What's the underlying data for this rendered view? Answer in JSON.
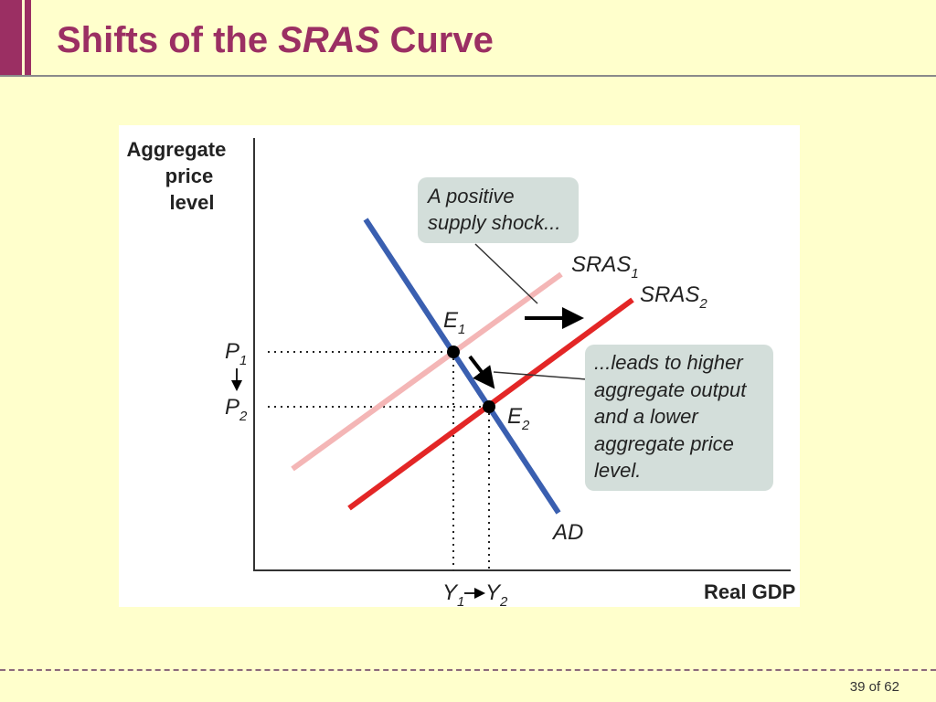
{
  "slide": {
    "title_prefix": "Shifts of the ",
    "title_emphasis": "SRAS",
    "title_suffix": " Curve",
    "slide_number": "39 of 62"
  },
  "diagram": {
    "y_axis_label": [
      "Aggregate",
      "price",
      "level"
    ],
    "x_axis_label": "Real GDP",
    "curves": {
      "sras1": {
        "base": "SRAS",
        "sub": "1",
        "color": "#F4B6B6"
      },
      "sras2": {
        "base": "SRAS",
        "sub": "2",
        "color": "#E32626"
      },
      "ad": {
        "label": "AD",
        "color": "#3A5FB0"
      }
    },
    "points": {
      "e1": {
        "base": "E",
        "sub": "1"
      },
      "e2": {
        "base": "E",
        "sub": "2"
      }
    },
    "price_levels": {
      "p1": {
        "base": "P",
        "sub": "1"
      },
      "p2": {
        "base": "P",
        "sub": "2"
      }
    },
    "outputs": {
      "y1": {
        "base": "Y",
        "sub": "1"
      },
      "y2": {
        "base": "Y",
        "sub": "2"
      }
    },
    "callout_shock": [
      "A positive",
      "supply shock..."
    ],
    "callout_result": [
      "...leads to higher",
      "aggregate output",
      "and a lower",
      "aggregate price",
      "level."
    ],
    "callout_color": "#D3DEDA"
  }
}
